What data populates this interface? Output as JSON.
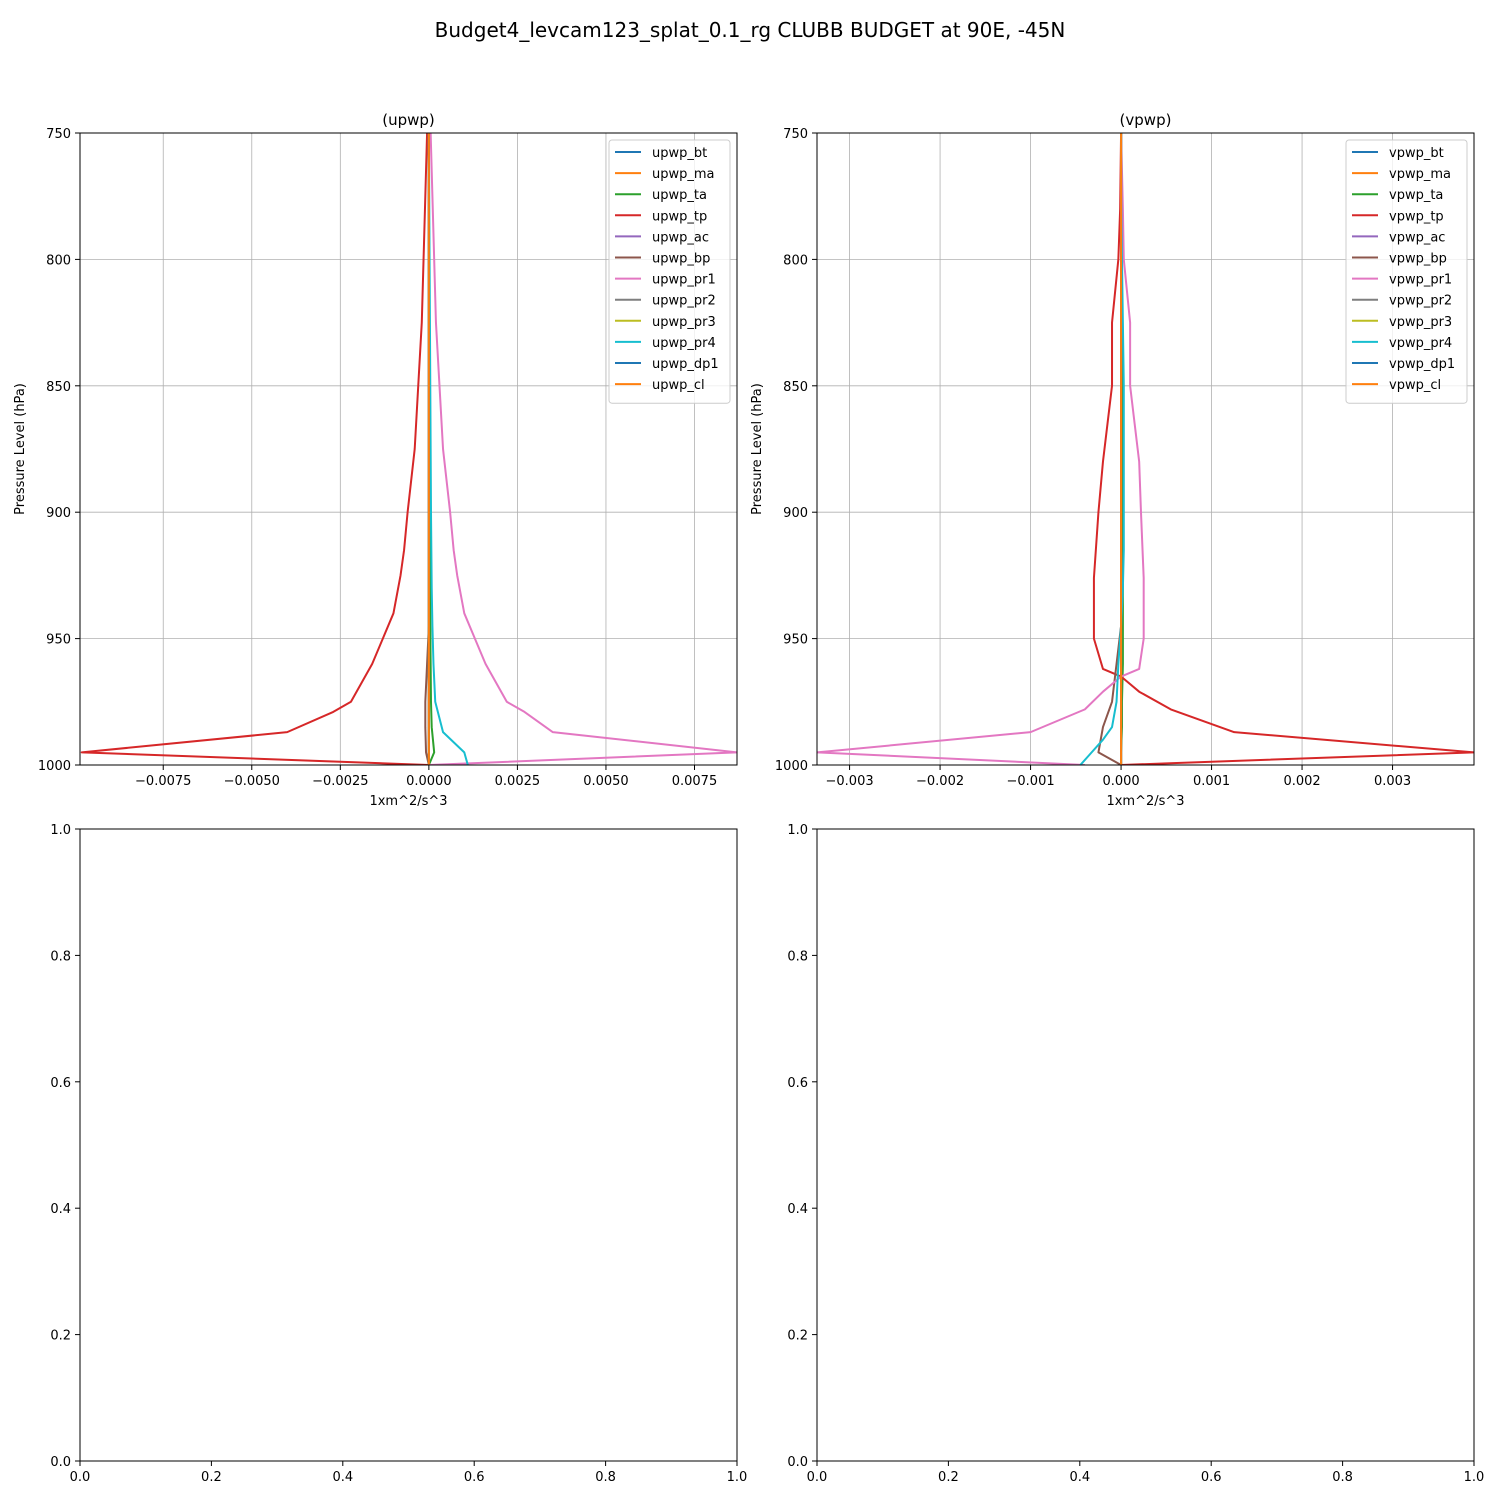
{
  "figure": {
    "title": "Budget4_levcam123_splat_0.1_rg CLUBB BUDGET at 90E, -45N"
  },
  "chart_data": [
    {
      "type": "line",
      "title": "(upwp)",
      "xlabel": "1xm^2/s^3",
      "ylabel": "Pressure Level (hPa)",
      "xlim": [
        -0.00985,
        0.0087
      ],
      "ylim": [
        1000,
        750
      ],
      "y_inverted": true,
      "xticks": [
        -0.0075,
        -0.005,
        -0.0025,
        0.0,
        0.0025,
        0.005,
        0.0075
      ],
      "xtick_labels": [
        "−0.0075",
        "−0.0050",
        "−0.0025",
        "0.0000",
        "0.0025",
        "0.0050",
        "0.0075"
      ],
      "yticks": [
        750,
        800,
        850,
        900,
        950,
        1000
      ],
      "ytick_labels": [
        "750",
        "800",
        "850",
        "900",
        "950",
        "1000"
      ],
      "grid": true,
      "legend_position": "top-right",
      "series": [
        {
          "name": "upwp_bt",
          "color": "#1f77b4",
          "x": [
            0,
            0,
            0,
            0,
            0,
            0,
            0,
            0,
            0,
            0,
            0,
            0,
            0,
            0,
            0
          ],
          "y": [
            750,
            775,
            800,
            825,
            850,
            875,
            900,
            915,
            930,
            945,
            960,
            975,
            985,
            995,
            1000
          ]
        },
        {
          "name": "upwp_ma",
          "color": "#ff7f0e",
          "x": [
            0,
            0,
            0,
            0,
            0,
            0,
            0,
            0,
            0,
            0,
            0,
            0,
            0,
            0,
            0
          ],
          "y": [
            750,
            775,
            800,
            825,
            850,
            875,
            900,
            915,
            930,
            945,
            960,
            975,
            985,
            995,
            1000
          ]
        },
        {
          "name": "upwp_ta",
          "color": "#2ca02c",
          "x": [
            0,
            0,
            1e-05,
            1e-05,
            2e-05,
            2e-05,
            3e-05,
            3e-05,
            4e-05,
            4e-05,
            5e-05,
            6e-05,
            8e-05,
            0.00015,
            0
          ],
          "y": [
            750,
            775,
            800,
            825,
            850,
            875,
            900,
            915,
            930,
            945,
            960,
            975,
            985,
            995,
            1000
          ]
        },
        {
          "name": "upwp_tp",
          "color": "#d62728",
          "x": [
            -5e-05,
            -0.0001,
            -0.00015,
            -0.0002,
            -0.0003,
            -0.0004,
            -0.0006,
            -0.0007,
            -0.0008,
            -0.001,
            -0.0013,
            -0.0016,
            -0.0022,
            -0.0027,
            -0.004,
            -0.0098,
            0
          ],
          "y": [
            750,
            775,
            800,
            825,
            850,
            875,
            900,
            915,
            925,
            940,
            950,
            960,
            975,
            979,
            987,
            995,
            1000
          ]
        },
        {
          "name": "upwp_ac",
          "color": "#9467bd",
          "x": [
            0,
            0,
            0,
            0,
            0,
            0,
            0,
            0,
            0,
            0,
            0,
            0,
            0,
            0,
            0
          ],
          "y": [
            750,
            775,
            800,
            825,
            850,
            875,
            900,
            915,
            930,
            945,
            960,
            975,
            985,
            995,
            1000
          ]
        },
        {
          "name": "upwp_bp",
          "color": "#8c564b",
          "x": [
            0,
            0,
            0,
            0,
            0,
            0,
            0,
            0,
            0,
            0,
            -5e-05,
            -0.0001,
            -0.0001,
            -8e-05,
            0
          ],
          "y": [
            750,
            775,
            800,
            825,
            850,
            875,
            900,
            915,
            930,
            945,
            960,
            975,
            985,
            995,
            1000
          ]
        },
        {
          "name": "upwp_pr1",
          "color": "#e377c2",
          "x": [
            5e-05,
            0.0001,
            0.00015,
            0.0002,
            0.0003,
            0.0004,
            0.0006,
            0.0007,
            0.0008,
            0.001,
            0.0013,
            0.0016,
            0.0022,
            0.0027,
            0.0035,
            0.0087,
            0
          ],
          "y": [
            750,
            775,
            800,
            825,
            850,
            875,
            900,
            915,
            925,
            940,
            950,
            960,
            975,
            979,
            987,
            995,
            1000
          ]
        },
        {
          "name": "upwp_pr2",
          "color": "#7f7f7f",
          "x": [
            0,
            0,
            0,
            0,
            0,
            0,
            0,
            0,
            0,
            0,
            0,
            0,
            0,
            0,
            0
          ],
          "y": [
            750,
            775,
            800,
            825,
            850,
            875,
            900,
            915,
            930,
            945,
            960,
            975,
            985,
            995,
            1000
          ]
        },
        {
          "name": "upwp_pr3",
          "color": "#bcbd22",
          "x": [
            0,
            0,
            0,
            0,
            0,
            0,
            0,
            0,
            0,
            0,
            0,
            0,
            0,
            0,
            0
          ],
          "y": [
            750,
            775,
            800,
            825,
            850,
            875,
            900,
            915,
            930,
            945,
            960,
            975,
            985,
            995,
            1000
          ]
        },
        {
          "name": "upwp_pr4",
          "color": "#17becf",
          "x": [
            0,
            1e-05,
            2e-05,
            3e-05,
            4e-05,
            5e-05,
            6e-05,
            7e-05,
            8e-05,
            0.0001,
            0.00013,
            0.00018,
            0.0004,
            0.001,
            0.0011
          ],
          "y": [
            750,
            775,
            800,
            825,
            850,
            875,
            900,
            915,
            930,
            945,
            960,
            975,
            987,
            995,
            1000
          ]
        },
        {
          "name": "upwp_dp1",
          "color": "#1f77b4",
          "x": [
            0,
            0,
            0,
            0,
            0,
            0,
            0,
            0,
            0,
            0,
            0,
            0,
            0,
            0,
            0
          ],
          "y": [
            750,
            775,
            800,
            825,
            850,
            875,
            900,
            915,
            930,
            945,
            960,
            975,
            985,
            995,
            1000
          ]
        },
        {
          "name": "upwp_cl",
          "color": "#ff7f0e",
          "x": [
            0,
            0,
            0,
            0,
            0,
            0,
            0,
            0,
            0,
            0,
            0,
            0,
            0,
            0,
            0
          ],
          "y": [
            750,
            775,
            800,
            825,
            850,
            875,
            900,
            915,
            930,
            945,
            960,
            975,
            985,
            995,
            1000
          ]
        }
      ]
    },
    {
      "type": "line",
      "title": "(vpwp)",
      "xlabel": "1xm^2/s^3",
      "ylabel": "Pressure Level (hPa)",
      "xlim": [
        -0.00336,
        0.0039
      ],
      "ylim": [
        1000,
        750
      ],
      "y_inverted": true,
      "xticks": [
        -0.003,
        -0.002,
        -0.001,
        0.0,
        0.001,
        0.002,
        0.003
      ],
      "xtick_labels": [
        "−0.003",
        "−0.002",
        "−0.001",
        "0.000",
        "0.001",
        "0.002",
        "0.003"
      ],
      "yticks": [
        750,
        800,
        850,
        900,
        950,
        1000
      ],
      "ytick_labels": [
        "750",
        "800",
        "850",
        "900",
        "950",
        "1000"
      ],
      "grid": true,
      "legend_position": "top-right",
      "series": [
        {
          "name": "vpwp_bt",
          "color": "#1f77b4",
          "x": [
            0,
            0,
            0,
            0,
            0,
            0,
            0,
            0,
            0,
            0,
            0,
            0,
            0,
            0,
            0
          ],
          "y": [
            750,
            775,
            800,
            825,
            850,
            875,
            900,
            915,
            930,
            945,
            960,
            975,
            985,
            995,
            1000
          ]
        },
        {
          "name": "vpwp_ma",
          "color": "#ff7f0e",
          "x": [
            0,
            0,
            0,
            0,
            0,
            0,
            0,
            0,
            0,
            0,
            0,
            0,
            0,
            0,
            0
          ],
          "y": [
            750,
            775,
            800,
            825,
            850,
            875,
            900,
            915,
            930,
            945,
            960,
            975,
            985,
            995,
            1000
          ]
        },
        {
          "name": "vpwp_ta",
          "color": "#2ca02c",
          "x": [
            0,
            0,
            0,
            1e-05,
            1e-05,
            2e-05,
            2e-05,
            2e-05,
            2e-05,
            2e-05,
            2e-05,
            1e-05,
            1e-05,
            0,
            0
          ],
          "y": [
            750,
            775,
            800,
            825,
            850,
            875,
            900,
            915,
            930,
            945,
            960,
            975,
            985,
            995,
            1000
          ]
        },
        {
          "name": "vpwp_tp",
          "color": "#d62728",
          "x": [
            0,
            -1e-05,
            -3e-05,
            -0.0001,
            -0.0001,
            -0.00015,
            -0.0002,
            -0.00025,
            -0.0003,
            -0.0003,
            -0.0003,
            -0.0002,
            0,
            0.0002,
            0.00055,
            0.00125,
            0.0039,
            0
          ],
          "y": [
            750,
            780,
            800,
            825,
            850,
            865,
            880,
            900,
            926,
            940,
            950,
            962,
            965,
            971,
            978,
            987,
            995,
            1000
          ]
        },
        {
          "name": "vpwp_ac",
          "color": "#9467bd",
          "x": [
            0,
            0,
            0,
            0,
            0,
            0,
            0,
            0,
            0,
            0,
            0,
            0,
            0,
            0,
            0
          ],
          "y": [
            750,
            775,
            800,
            825,
            850,
            875,
            900,
            915,
            930,
            945,
            960,
            975,
            985,
            995,
            1000
          ]
        },
        {
          "name": "vpwp_bp",
          "color": "#8c564b",
          "x": [
            0,
            0,
            0,
            0,
            0,
            0,
            0,
            0,
            0,
            0,
            -5e-05,
            -0.0001,
            -0.0002,
            -0.00025,
            0
          ],
          "y": [
            750,
            775,
            800,
            825,
            850,
            875,
            900,
            915,
            930,
            945,
            960,
            975,
            985,
            995,
            1000
          ]
        },
        {
          "name": "vpwp_pr1",
          "color": "#e377c2",
          "x": [
            0,
            2e-05,
            3e-05,
            0.0001,
            0.0001,
            0.00015,
            0.0002,
            0.00022,
            0.00025,
            0.00025,
            0.00025,
            0.0002,
            0,
            -0.0002,
            -0.0004,
            -0.001,
            -0.00336,
            -0.0004
          ],
          "y": [
            750,
            780,
            800,
            825,
            850,
            865,
            880,
            900,
            926,
            940,
            950,
            962,
            965,
            971,
            978,
            987,
            995,
            1000
          ]
        },
        {
          "name": "vpwp_pr2",
          "color": "#7f7f7f",
          "x": [
            0,
            0,
            0,
            0,
            0,
            0,
            0,
            0,
            0,
            0,
            0,
            0,
            0,
            0,
            0
          ],
          "y": [
            750,
            775,
            800,
            825,
            850,
            875,
            900,
            915,
            930,
            945,
            960,
            975,
            985,
            995,
            1000
          ]
        },
        {
          "name": "vpwp_pr3",
          "color": "#bcbd22",
          "x": [
            0,
            0,
            0,
            0,
            0,
            0,
            0,
            0,
            0,
            0,
            0,
            0,
            0,
            0,
            0
          ],
          "y": [
            750,
            775,
            800,
            825,
            850,
            875,
            900,
            915,
            930,
            945,
            960,
            975,
            985,
            995,
            1000
          ]
        },
        {
          "name": "vpwp_pr4",
          "color": "#17becf",
          "x": [
            0,
            0,
            1e-05,
            2e-05,
            3e-05,
            3e-05,
            3e-05,
            3e-05,
            2e-05,
            0,
            -3e-05,
            -5e-05,
            -0.0001,
            -0.0002,
            -0.00035,
            -0.00045
          ],
          "y": [
            750,
            775,
            800,
            825,
            850,
            875,
            900,
            915,
            930,
            945,
            960,
            975,
            985,
            990,
            996,
            1000
          ]
        },
        {
          "name": "vpwp_dp1",
          "color": "#1f77b4",
          "x": [
            0,
            0,
            0,
            0,
            0,
            0,
            0,
            0,
            0,
            0,
            0,
            0,
            0,
            0,
            0
          ],
          "y": [
            750,
            775,
            800,
            825,
            850,
            875,
            900,
            915,
            930,
            945,
            960,
            975,
            985,
            995,
            1000
          ]
        },
        {
          "name": "vpwp_cl",
          "color": "#ff7f0e",
          "x": [
            0,
            0,
            0,
            0,
            0,
            0,
            0,
            0,
            0,
            0,
            0,
            0,
            0,
            0,
            0
          ],
          "y": [
            750,
            775,
            800,
            825,
            850,
            875,
            900,
            915,
            930,
            945,
            960,
            975,
            985,
            995,
            1000
          ]
        }
      ]
    },
    {
      "type": "line",
      "title": "",
      "xlim": [
        0,
        1
      ],
      "ylim": [
        0,
        1
      ],
      "xticks": [
        0,
        0.2,
        0.4,
        0.6,
        0.8,
        1
      ],
      "xtick_labels": [
        "0.0",
        "0.2",
        "0.4",
        "0.6",
        "0.8",
        "1.0"
      ],
      "yticks": [
        0,
        0.2,
        0.4,
        0.6,
        0.8,
        1
      ],
      "ytick_labels": [
        "0.0",
        "0.2",
        "0.4",
        "0.6",
        "0.8",
        "1.0"
      ],
      "grid": false,
      "series": []
    },
    {
      "type": "line",
      "title": "",
      "xlim": [
        0,
        1
      ],
      "ylim": [
        0,
        1
      ],
      "xticks": [
        0,
        0.2,
        0.4,
        0.6,
        0.8,
        1
      ],
      "xtick_labels": [
        "0.0",
        "0.2",
        "0.4",
        "0.6",
        "0.8",
        "1.0"
      ],
      "yticks": [
        0,
        0.2,
        0.4,
        0.6,
        0.8,
        1
      ],
      "ytick_labels": [
        "0.0",
        "0.2",
        "0.4",
        "0.6",
        "0.8",
        "1.0"
      ],
      "grid": false,
      "series": []
    }
  ]
}
